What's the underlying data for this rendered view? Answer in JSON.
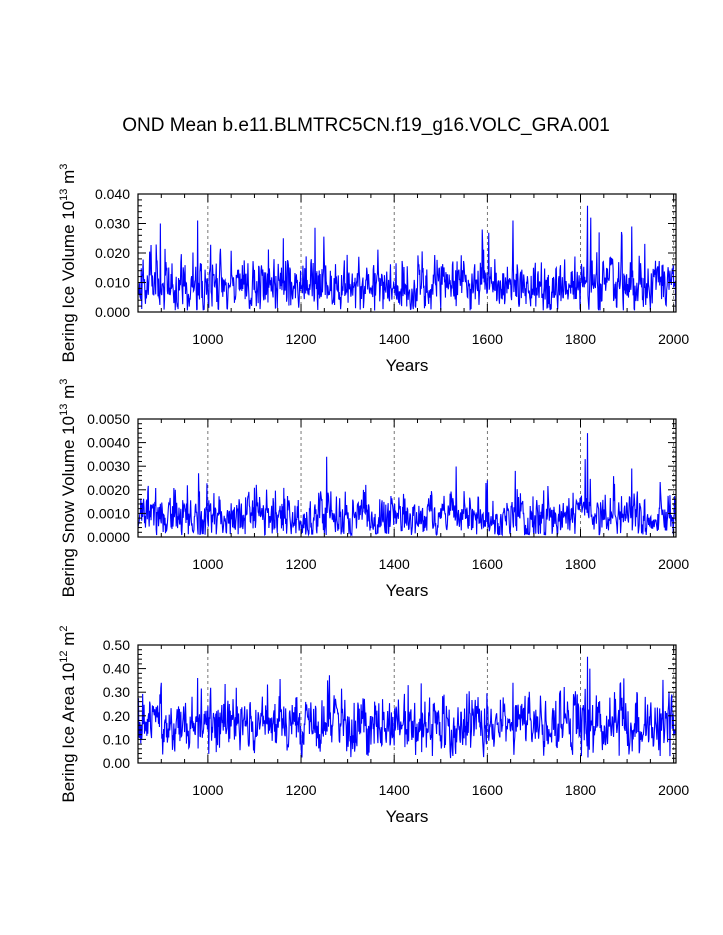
{
  "title": "OND Mean b.e11.BLMTRC5CN.f19_g16.VOLC_GRA.001",
  "line_color": "#0000ff",
  "chart_data": [
    {
      "type": "line",
      "name": "ice-volume",
      "ylabel": "Bering Ice Volume 10",
      "ylabel_exp": "13",
      "ylabel_unit": " m",
      "ylabel_unit_exp": "3",
      "xlabel": "Years",
      "xlim": [
        850,
        2005
      ],
      "ylim": [
        0.0,
        0.04
      ],
      "xticks": [
        1000,
        1200,
        1400,
        1600,
        1800,
        2000
      ],
      "xtick_labels": [
        "1000",
        "1200",
        "1400",
        "1600",
        "1800",
        "2000"
      ],
      "yticks": [
        0.0,
        0.01,
        0.02,
        0.03,
        0.04
      ],
      "ytick_labels": [
        "0.000",
        "0.010",
        "0.020",
        "0.030",
        "0.040"
      ],
      "grid_x": "dashed vertical at major ticks",
      "series": [
        {
          "name": "Bering Ice Volume",
          "baseline": 0.009,
          "noise": 0.0042,
          "floor": 0.0005,
          "seed": 11,
          "peaks": [
            [
              898,
              0.03
            ],
            [
              978,
              0.031
            ],
            [
              1162,
              0.025
            ],
            [
              1590,
              0.023
            ],
            [
              1655,
              0.031
            ],
            [
              1815,
              0.036
            ],
            [
              1822,
              0.032
            ],
            [
              1840,
              0.027
            ],
            [
              1910,
              0.029
            ]
          ]
        }
      ]
    },
    {
      "type": "line",
      "name": "snow-volume",
      "ylabel": "Bering Snow Volume 10",
      "ylabel_exp": "13",
      "ylabel_unit": " m",
      "ylabel_unit_exp": "3",
      "xlabel": "Years",
      "xlim": [
        850,
        2005
      ],
      "ylim": [
        0.0,
        0.005
      ],
      "xticks": [
        1000,
        1200,
        1400,
        1600,
        1800,
        2000
      ],
      "xtick_labels": [
        "1000",
        "1200",
        "1400",
        "1600",
        "1800",
        "2000"
      ],
      "yticks": [
        0.0,
        0.001,
        0.002,
        0.003,
        0.004,
        0.005
      ],
      "ytick_labels": [
        "0.0000",
        "0.0010",
        "0.0020",
        "0.0030",
        "0.0040",
        "0.0050"
      ],
      "grid_x": "dashed vertical at major ticks",
      "series": [
        {
          "name": "Bering Snow Volume",
          "baseline": 0.00085,
          "noise": 0.00045,
          "floor": 8e-05,
          "seed": 23,
          "peaks": [
            [
              980,
              0.0027
            ],
            [
              1255,
              0.0034
            ],
            [
              1600,
              0.0024
            ],
            [
              1660,
              0.0028
            ],
            [
              1815,
              0.0044
            ],
            [
              1810,
              0.0033
            ],
            [
              1910,
              0.0029
            ]
          ]
        }
      ]
    },
    {
      "type": "line",
      "name": "ice-area",
      "ylabel": "Bering Ice Area 10",
      "ylabel_exp": "12",
      "ylabel_unit": " m",
      "ylabel_unit_exp": "2",
      "xlabel": "Years",
      "xlim": [
        850,
        2005
      ],
      "ylim": [
        0.0,
        0.5
      ],
      "xticks": [
        1000,
        1200,
        1400,
        1600,
        1800,
        2000
      ],
      "xtick_labels": [
        "1000",
        "1200",
        "1400",
        "1600",
        "1800",
        "2000"
      ],
      "yticks": [
        0.0,
        0.1,
        0.2,
        0.3,
        0.4,
        0.5
      ],
      "ytick_labels": [
        "0.00",
        "0.10",
        "0.20",
        "0.30",
        "0.40",
        "0.50"
      ],
      "grid_x": "dashed vertical at major ticks",
      "series": [
        {
          "name": "Bering Ice Area",
          "baseline": 0.16,
          "noise": 0.055,
          "floor": 0.02,
          "seed": 37,
          "peaks": [
            [
              900,
              0.34
            ],
            [
              978,
              0.36
            ],
            [
              1257,
              0.35
            ],
            [
              1430,
              0.33
            ],
            [
              1655,
              0.34
            ],
            [
              1815,
              0.45
            ],
            [
              1820,
              0.4
            ],
            [
              1990,
              0.3
            ]
          ]
        }
      ]
    }
  ]
}
